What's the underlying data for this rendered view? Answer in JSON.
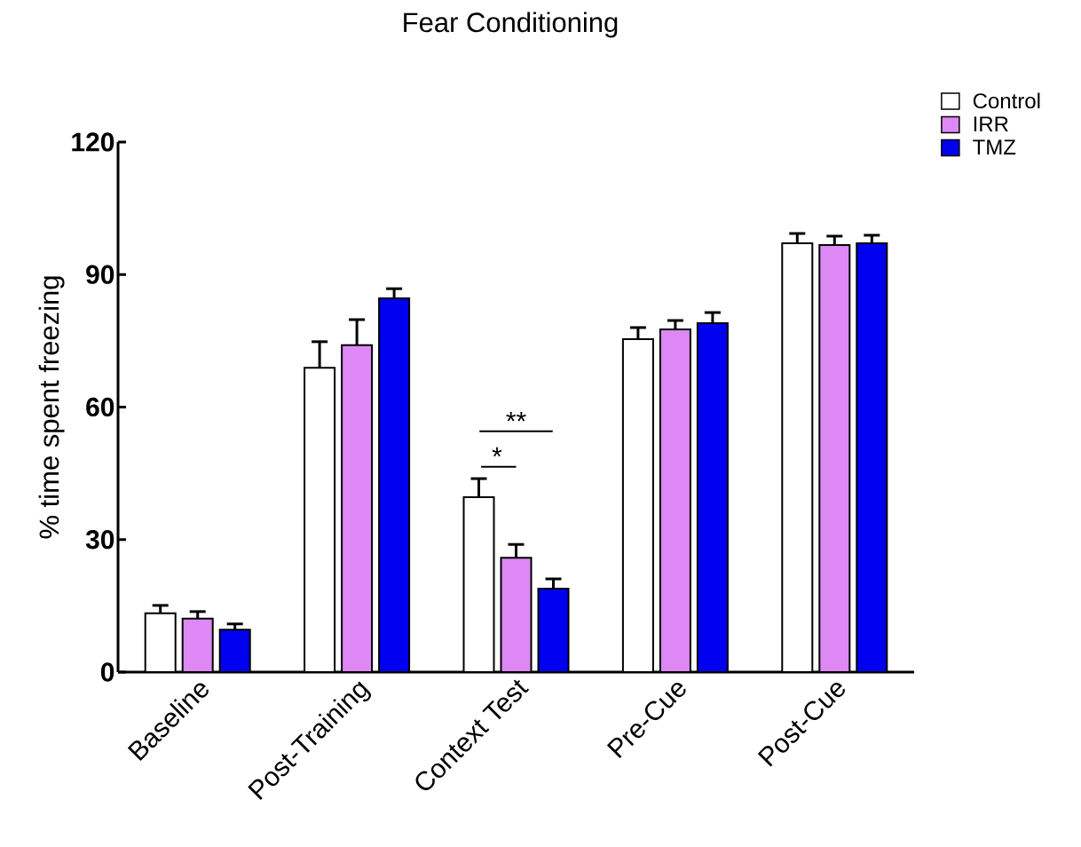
{
  "chart_data": {
    "type": "bar",
    "title": "Fear Conditioning",
    "ylabel": "% time spent freezing",
    "categories": [
      "Baseline",
      "Post-Training",
      "Context Test",
      "Pre-Cue",
      "Post-Cue"
    ],
    "series": [
      {
        "name": "Control",
        "color": "#ffffff",
        "values": [
          13.3,
          68.9,
          39.6,
          75.4,
          97.1
        ],
        "errors": [
          1.8,
          5.9,
          4.2,
          2.6,
          2.2
        ]
      },
      {
        "name": "IRR",
        "color": "#dd88f5",
        "values": [
          12.1,
          74.0,
          25.9,
          77.6,
          96.7
        ],
        "errors": [
          1.6,
          5.8,
          3.0,
          2.0,
          2.0
        ]
      },
      {
        "name": "TMZ",
        "color": "#0000f0",
        "values": [
          9.6,
          84.6,
          18.9,
          79.0,
          97.1
        ],
        "errors": [
          1.3,
          2.2,
          2.2,
          2.4,
          1.8
        ]
      }
    ],
    "ylim": [
      0,
      120
    ],
    "yticks": [
      0,
      30,
      60,
      90,
      120
    ],
    "grid": false,
    "legend": "top right",
    "annotations": [
      "*",
      "**"
    ]
  }
}
